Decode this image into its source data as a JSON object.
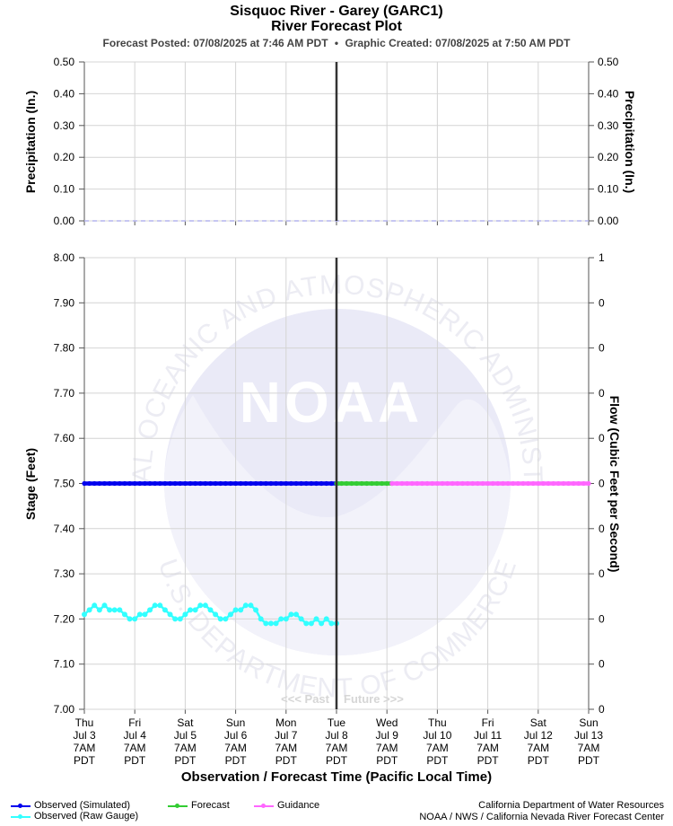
{
  "header": {
    "title": "Sisquoc River - Garey (GARC1)",
    "subtitle": "River Forecast Plot",
    "posted": "Forecast Posted: 07/08/2025 at 7:46 AM PDT",
    "separator": "•",
    "created": "Graphic Created: 07/08/2025 at 7:50 AM PDT"
  },
  "chart_data": [
    {
      "type": "line",
      "panel": "precipitation",
      "ylabel_left": "Precipitation (In.)",
      "ylabel_right": "Precipitation (In.)",
      "ylim": [
        0,
        0.5
      ],
      "yticks": [
        "0.00",
        "0.10",
        "0.20",
        "0.30",
        "0.40",
        "0.50"
      ],
      "grid": true,
      "series": [
        {
          "name": "",
          "color": "#b3b3ee",
          "style": "dashed",
          "x_start": 0,
          "x_end": 10,
          "value": 0.0
        }
      ]
    },
    {
      "type": "line",
      "panel": "stage",
      "ylabel_left": "Stage (Feet)",
      "ylabel_right": "Flow (Cubic Feet per Second)",
      "ylim": [
        7.0,
        8.0
      ],
      "yticks_left": [
        "7.00",
        "7.10",
        "7.20",
        "7.30",
        "7.40",
        "7.50",
        "7.60",
        "7.70",
        "7.80",
        "7.90",
        "8.00"
      ],
      "yticks_right": [
        "0",
        "0",
        "0",
        "0",
        "0",
        "0",
        "0",
        "0",
        "0",
        "0",
        "1"
      ],
      "xlabel": "Observation / Forecast Time (Pacific Local Time)",
      "x_unit": "days since Thu Jul 3 7AM PDT",
      "xticks": [
        {
          "day": "Thu",
          "date": "Jul 3",
          "time": "7AM",
          "tz": "PDT"
        },
        {
          "day": "Fri",
          "date": "Jul 4",
          "time": "7AM",
          "tz": "PDT"
        },
        {
          "day": "Sat",
          "date": "Jul 5",
          "time": "7AM",
          "tz": "PDT"
        },
        {
          "day": "Sun",
          "date": "Jul 6",
          "time": "7AM",
          "tz": "PDT"
        },
        {
          "day": "Mon",
          "date": "Jul 7",
          "time": "7AM",
          "tz": "PDT"
        },
        {
          "day": "Tue",
          "date": "Jul 8",
          "time": "7AM",
          "tz": "PDT"
        },
        {
          "day": "Wed",
          "date": "Jul 9",
          "time": "7AM",
          "tz": "PDT"
        },
        {
          "day": "Thu",
          "date": "Jul 10",
          "time": "7AM",
          "tz": "PDT"
        },
        {
          "day": "Fri",
          "date": "Jul 11",
          "time": "7AM",
          "tz": "PDT"
        },
        {
          "day": "Sat",
          "date": "Jul 12",
          "time": "7AM",
          "tz": "PDT"
        },
        {
          "day": "Sun",
          "date": "Jul 13",
          "time": "7AM",
          "tz": "PDT"
        }
      ],
      "now_x": 5.0,
      "past_label": "<<< Past",
      "future_label": "Future >>>",
      "grid": true,
      "series": [
        {
          "name": "Observed (Simulated)",
          "color": "#0000ee",
          "x_start": 0.0,
          "x_end": 5.05,
          "value": 7.5
        },
        {
          "name": "Forecast",
          "color": "#33cc33",
          "x_start": 5.0,
          "x_end": 6.1,
          "value": 7.5
        },
        {
          "name": "Guidance",
          "color": "#ff66ff",
          "x_start": 6.1,
          "x_end": 10.0,
          "value": 7.5
        },
        {
          "name": "Observed (Raw Gauge)",
          "color": "#33ffff",
          "points": [
            [
              0.0,
              7.21
            ],
            [
              0.1,
              7.22
            ],
            [
              0.2,
              7.23
            ],
            [
              0.3,
              7.22
            ],
            [
              0.4,
              7.23
            ],
            [
              0.5,
              7.22
            ],
            [
              0.6,
              7.22
            ],
            [
              0.7,
              7.22
            ],
            [
              0.8,
              7.21
            ],
            [
              0.9,
              7.2
            ],
            [
              1.0,
              7.2
            ],
            [
              1.1,
              7.21
            ],
            [
              1.2,
              7.21
            ],
            [
              1.3,
              7.22
            ],
            [
              1.4,
              7.23
            ],
            [
              1.5,
              7.23
            ],
            [
              1.6,
              7.22
            ],
            [
              1.7,
              7.21
            ],
            [
              1.8,
              7.2
            ],
            [
              1.9,
              7.2
            ],
            [
              2.0,
              7.21
            ],
            [
              2.1,
              7.22
            ],
            [
              2.2,
              7.22
            ],
            [
              2.3,
              7.23
            ],
            [
              2.4,
              7.23
            ],
            [
              2.5,
              7.22
            ],
            [
              2.6,
              7.21
            ],
            [
              2.7,
              7.2
            ],
            [
              2.8,
              7.2
            ],
            [
              2.9,
              7.21
            ],
            [
              3.0,
              7.22
            ],
            [
              3.1,
              7.22
            ],
            [
              3.2,
              7.23
            ],
            [
              3.3,
              7.23
            ],
            [
              3.4,
              7.22
            ],
            [
              3.5,
              7.2
            ],
            [
              3.6,
              7.19
            ],
            [
              3.7,
              7.19
            ],
            [
              3.8,
              7.19
            ],
            [
              3.9,
              7.2
            ],
            [
              4.0,
              7.2
            ],
            [
              4.1,
              7.21
            ],
            [
              4.2,
              7.21
            ],
            [
              4.3,
              7.2
            ],
            [
              4.4,
              7.19
            ],
            [
              4.5,
              7.19
            ],
            [
              4.6,
              7.2
            ],
            [
              4.7,
              7.19
            ],
            [
              4.8,
              7.2
            ],
            [
              4.9,
              7.19
            ],
            [
              5.0,
              7.19
            ]
          ]
        }
      ]
    }
  ],
  "legend": {
    "observed_simulated": "Observed (Simulated)",
    "observed_raw": "Observed (Raw Gauge)",
    "forecast": "Forecast",
    "guidance": "Guidance"
  },
  "credits": {
    "line1": "California Department of Water Resources",
    "line2": "NOAA / NWS / California Nevada River Forecast Center"
  },
  "watermark": {
    "logo_text": "NOAA",
    "ring_top": "NATIONAL OCEANIC AND ATMOSPHERIC ADMINISTRATION",
    "ring_bottom": "U.S. DEPARTMENT OF COMMERCE"
  }
}
